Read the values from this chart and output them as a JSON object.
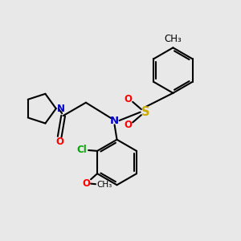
{
  "bg_color": "#e8e8e8",
  "bond_color": "#000000",
  "N_color": "#0000cc",
  "O_color": "#ff0000",
  "S_color": "#ccaa00",
  "Cl_color": "#00aa00",
  "lw": 1.5,
  "fs": 8.5,
  "xlim": [
    0,
    10
  ],
  "ylim": [
    0,
    10
  ],
  "hex_r": 0.95,
  "pyr_r": 0.65
}
